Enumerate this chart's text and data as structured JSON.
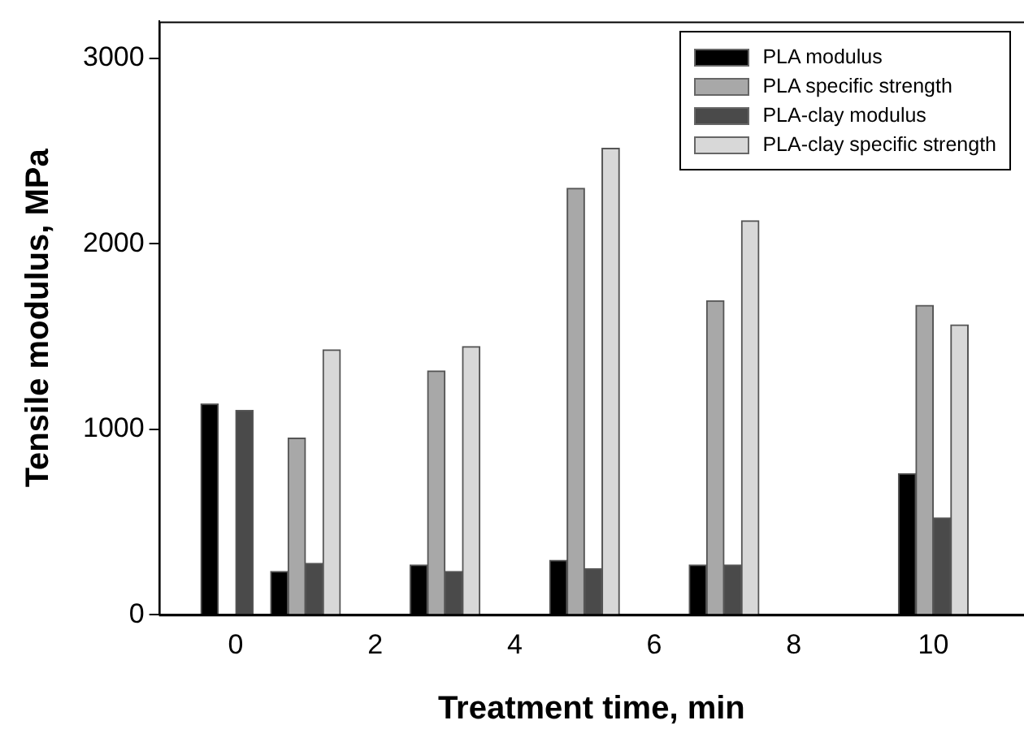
{
  "chart_data": {
    "type": "bar",
    "xlabel": "Treatment time, min",
    "ylabel": "Tensile modulus, MPa",
    "x": [
      0,
      1,
      3,
      5,
      7,
      10
    ],
    "series": [
      {
        "name": "PLA modulus",
        "color": "#000000",
        "values": [
          1137,
          233,
          268,
          294,
          268,
          761
        ]
      },
      {
        "name": "PLA specific strength",
        "color": "#a8a8a8",
        "values": [
          null,
          953,
          1315,
          2300,
          1694,
          1668
        ]
      },
      {
        "name": "PLA-clay modulus",
        "color": "#4a4a4a",
        "values": [
          1102,
          277,
          233,
          248,
          268,
          522
        ]
      },
      {
        "name": "PLA-clay specific strength",
        "color": "#d8d8d8",
        "values": [
          null,
          1429,
          1446,
          2516,
          2125,
          1563
        ]
      }
    ],
    "xlim": [
      -1.1,
      11.3
    ],
    "xticks": [
      0,
      2,
      4,
      6,
      8,
      10
    ],
    "ylim": [
      0,
      3200
    ],
    "yticks": [
      0,
      1000,
      2000,
      3000
    ],
    "grid": false,
    "legend": "top right"
  }
}
